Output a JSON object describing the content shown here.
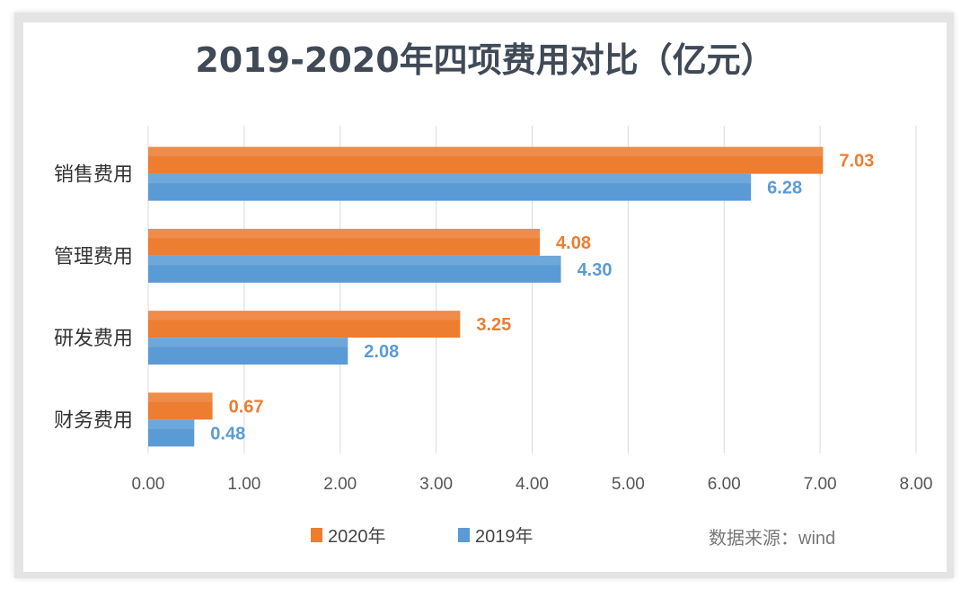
{
  "chart_data": {
    "type": "bar",
    "orientation": "horizontal",
    "title": "2019-2020年四项费用对比（亿元）",
    "categories": [
      "销售费用",
      "管理费用",
      "研发费用",
      "财务费用"
    ],
    "series": [
      {
        "name": "2020年",
        "values": [
          7.03,
          4.08,
          3.25,
          0.67
        ],
        "color": "#ed7d31"
      },
      {
        "name": "2019年",
        "values": [
          6.28,
          4.3,
          2.08,
          0.48
        ],
        "color": "#5b9bd5"
      }
    ],
    "data_labels": [
      [
        "7.03",
        "4.08",
        "3.25",
        "0.67"
      ],
      [
        "6.28",
        "4.30",
        "2.08",
        "0.48"
      ]
    ],
    "xlim": [
      0,
      8
    ],
    "xticks": [
      "0.00",
      "1.00",
      "2.00",
      "3.00",
      "4.00",
      "5.00",
      "6.00",
      "7.00",
      "8.00"
    ],
    "grid": true,
    "legend": "bottom",
    "source_note": "数据来源：wind"
  }
}
